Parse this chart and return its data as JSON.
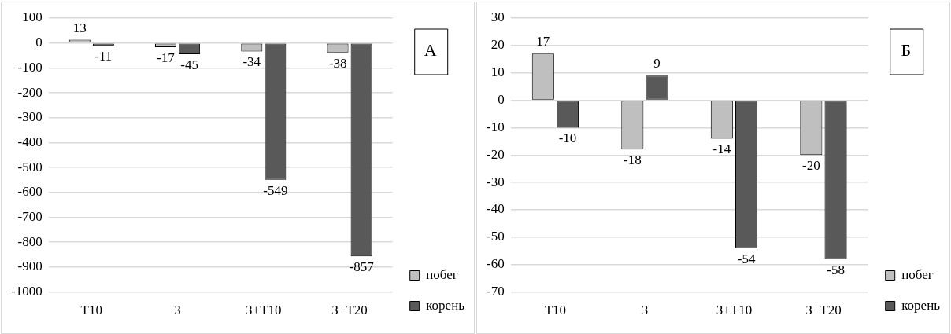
{
  "chart_data": [
    {
      "type": "bar",
      "categories": [
        "Т10",
        "З",
        "З+Т10",
        "З+Т20"
      ],
      "series": [
        {
          "name": "побег",
          "color": "#bfbfbf",
          "values": [
            13,
            -17,
            -34,
            -38
          ]
        },
        {
          "name": "корень",
          "color": "#595959",
          "values": [
            -11,
            -45,
            -549,
            -857
          ]
        }
      ],
      "ylim": [
        -1000,
        100
      ],
      "yticks": [
        100,
        0,
        -100,
        -200,
        -300,
        -400,
        -500,
        -600,
        -700,
        -800,
        -900,
        -1000
      ],
      "grid": "y",
      "legend": "bottom right",
      "data_labels": true,
      "annotations": [
        "А"
      ]
    },
    {
      "type": "bar",
      "categories": [
        "Т10",
        "З",
        "З+Т10",
        "З+Т20"
      ],
      "series": [
        {
          "name": "побег",
          "color": "#bfbfbf",
          "values": [
            17,
            -18,
            -14,
            -20
          ]
        },
        {
          "name": "корень",
          "color": "#595959",
          "values": [
            -10,
            9,
            -54,
            -58
          ]
        }
      ],
      "ylim": [
        -70,
        30
      ],
      "yticks": [
        30,
        20,
        10,
        0,
        -10,
        -20,
        -30,
        -40,
        -50,
        -60,
        -70
      ],
      "grid": "y",
      "legend": "bottom right",
      "data_labels": true,
      "annotations": [
        "Б"
      ]
    }
  ]
}
